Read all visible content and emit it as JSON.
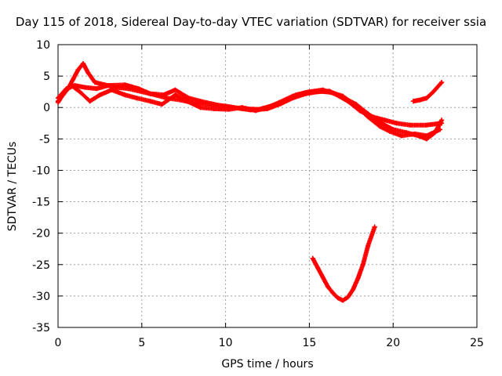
{
  "chart_data": {
    "type": "scatter",
    "title": "Day 115 of 2018, Sidereal Day-to-day VTEC variation (SDTVAR) for receiver ssia",
    "xlabel": "GPS time / hours",
    "ylabel": "SDTVAR / TECUs",
    "xlim": [
      0,
      25
    ],
    "ylim": [
      -35,
      10
    ],
    "xticks": [
      0,
      5,
      10,
      15,
      20,
      25
    ],
    "yticks": [
      -35,
      -30,
      -25,
      -20,
      -15,
      -10,
      -5,
      0,
      5,
      10
    ],
    "grid": true,
    "legend": "none",
    "marker": "+",
    "color": "#ff0000",
    "series": [
      {
        "name": "track-1",
        "points": [
          [
            0.0,
            1.0
          ],
          [
            0.3,
            2.0
          ],
          [
            0.6,
            3.0
          ],
          [
            0.9,
            4.5
          ],
          [
            1.2,
            6.0
          ],
          [
            1.5,
            7.0
          ],
          [
            1.8,
            5.5
          ],
          [
            2.2,
            4.0
          ],
          [
            2.8,
            3.6
          ],
          [
            3.5,
            3.2
          ],
          [
            4.2,
            3.0
          ],
          [
            5.0,
            2.5
          ],
          [
            5.8,
            2.0
          ],
          [
            6.5,
            1.5
          ],
          [
            7.3,
            1.2
          ],
          [
            8.0,
            0.8
          ],
          [
            9.0,
            0.5
          ],
          [
            10.0,
            0.2
          ],
          [
            11.0,
            -0.2
          ],
          [
            12.0,
            -0.3
          ],
          [
            12.8,
            0.3
          ],
          [
            13.5,
            1.0
          ],
          [
            14.2,
            2.0
          ],
          [
            15.0,
            2.5
          ],
          [
            15.8,
            2.8
          ],
          [
            16.5,
            2.2
          ],
          [
            17.3,
            1.0
          ],
          [
            18.0,
            -0.5
          ],
          [
            18.8,
            -1.5
          ],
          [
            19.5,
            -2.0
          ],
          [
            20.2,
            -2.5
          ],
          [
            21.0,
            -2.8
          ],
          [
            22.0,
            -2.8
          ],
          [
            22.9,
            -2.5
          ]
        ]
      },
      {
        "name": "track-2",
        "points": [
          [
            0.0,
            1.5
          ],
          [
            0.5,
            3.0
          ],
          [
            1.0,
            3.5
          ],
          [
            1.6,
            3.2
          ],
          [
            2.3,
            3.0
          ],
          [
            3.0,
            3.5
          ],
          [
            4.0,
            3.6
          ],
          [
            4.8,
            3.0
          ],
          [
            5.5,
            2.2
          ],
          [
            6.3,
            2.0
          ],
          [
            7.0,
            2.8
          ],
          [
            7.8,
            1.5
          ],
          [
            8.5,
            1.0
          ],
          [
            9.5,
            0.4
          ],
          [
            10.5,
            0.0
          ],
          [
            11.5,
            -0.4
          ],
          [
            12.5,
            -0.2
          ],
          [
            13.3,
            0.6
          ],
          [
            14.0,
            1.5
          ],
          [
            14.8,
            2.2
          ],
          [
            15.5,
            2.5
          ],
          [
            16.2,
            2.6
          ],
          [
            17.0,
            1.6
          ],
          [
            17.8,
            0.5
          ],
          [
            18.5,
            -1.0
          ],
          [
            19.3,
            -2.5
          ],
          [
            20.0,
            -3.5
          ],
          [
            20.8,
            -4.0
          ],
          [
            21.5,
            -4.5
          ],
          [
            22.0,
            -5.0
          ],
          [
            22.5,
            -4.0
          ],
          [
            22.9,
            -2.0
          ]
        ]
      },
      {
        "name": "track-3",
        "points": [
          [
            0.0,
            0.8
          ],
          [
            0.4,
            2.5
          ],
          [
            0.8,
            3.5
          ],
          [
            1.3,
            2.5
          ],
          [
            1.9,
            1.0
          ],
          [
            2.5,
            2.0
          ],
          [
            3.2,
            2.8
          ],
          [
            4.0,
            2.0
          ],
          [
            4.7,
            1.5
          ],
          [
            5.5,
            1.0
          ],
          [
            6.2,
            0.5
          ],
          [
            7.0,
            2.0
          ],
          [
            7.7,
            1.0
          ],
          [
            8.5,
            0.0
          ],
          [
            9.3,
            -0.2
          ],
          [
            10.2,
            -0.3
          ],
          [
            11.0,
            0.0
          ],
          [
            11.8,
            -0.5
          ],
          [
            12.5,
            0.0
          ],
          [
            13.2,
            0.8
          ],
          [
            14.0,
            1.8
          ],
          [
            14.8,
            2.4
          ],
          [
            15.6,
            2.6
          ],
          [
            16.3,
            2.4
          ],
          [
            17.0,
            1.8
          ],
          [
            17.8,
            0.2
          ],
          [
            18.5,
            -1.5
          ],
          [
            19.2,
            -3.0
          ],
          [
            19.8,
            -3.8
          ],
          [
            20.5,
            -4.5
          ],
          [
            21.3,
            -4.2
          ],
          [
            22.0,
            -4.5
          ],
          [
            22.8,
            -3.5
          ]
        ]
      },
      {
        "name": "track-4",
        "points": [
          [
            21.2,
            1.0
          ],
          [
            21.6,
            1.2
          ],
          [
            22.0,
            1.5
          ],
          [
            22.4,
            2.5
          ],
          [
            22.9,
            4.0
          ]
        ]
      },
      {
        "name": "track-5",
        "points": [
          [
            15.2,
            -24.0
          ],
          [
            15.5,
            -25.5
          ],
          [
            15.8,
            -27.0
          ],
          [
            16.1,
            -28.5
          ],
          [
            16.4,
            -29.5
          ],
          [
            16.7,
            -30.3
          ],
          [
            17.0,
            -30.7
          ],
          [
            17.3,
            -30.2
          ],
          [
            17.6,
            -29.0
          ],
          [
            17.9,
            -27.2
          ],
          [
            18.2,
            -25.0
          ],
          [
            18.5,
            -22.0
          ],
          [
            18.9,
            -19.0
          ]
        ]
      }
    ]
  }
}
